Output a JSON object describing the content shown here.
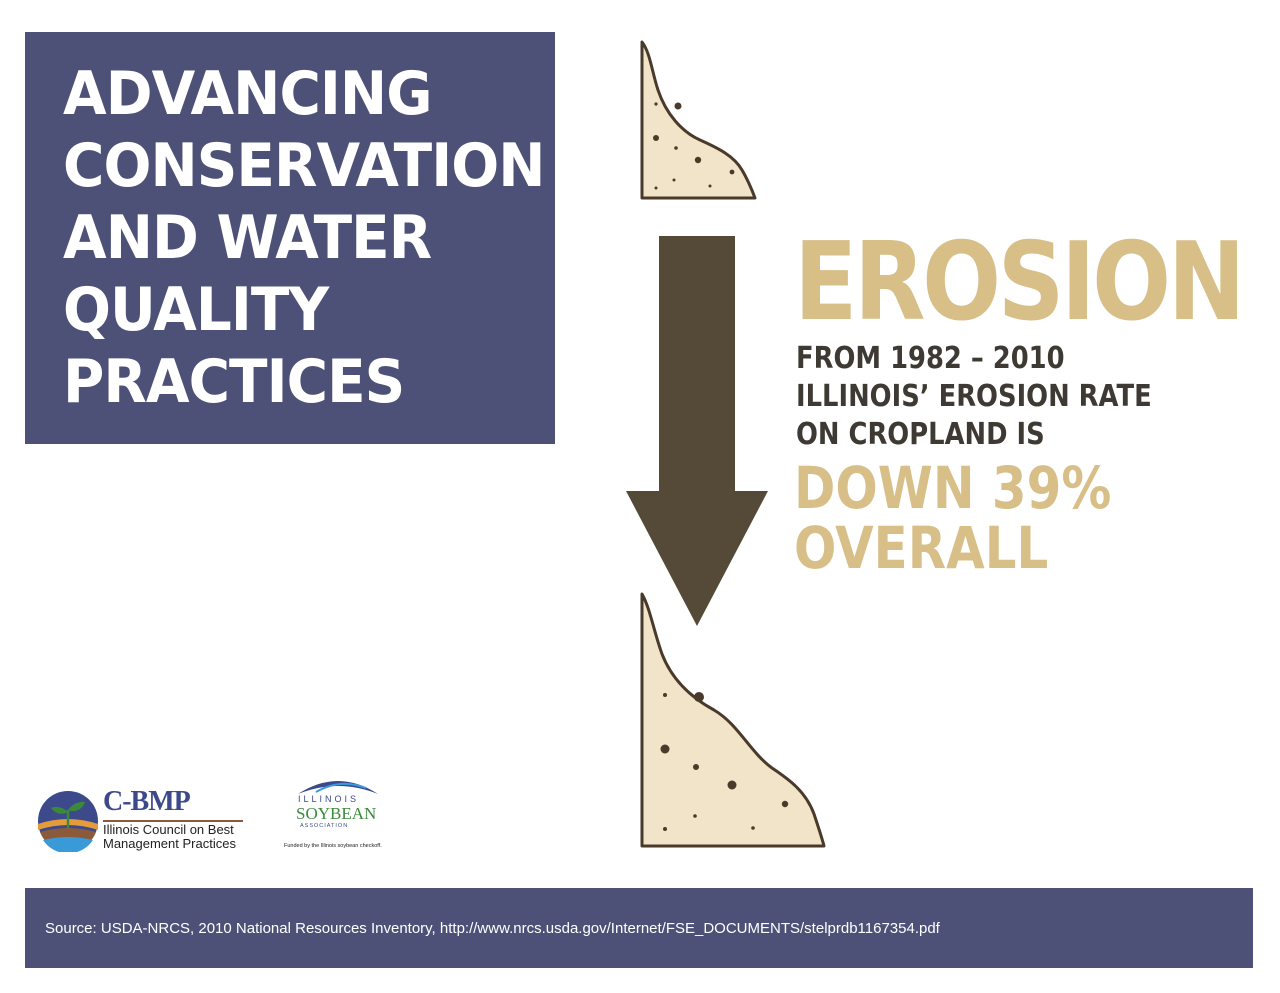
{
  "title": {
    "lines": [
      "ADVANCING",
      "CONSERVATION",
      "AND WATER",
      "QUALITY",
      "PRACTICES"
    ]
  },
  "erosion": {
    "heading": "EROSION",
    "body_lines": [
      "FROM 1982 – 2010",
      "ILLINOIS’ EROSION RATE",
      "ON CROPLAND IS"
    ],
    "highlight_lines": [
      "DOWN 39%",
      "OVERALL"
    ]
  },
  "logos": {
    "cbmp": {
      "name": "C-BMP",
      "subtitle_lines": [
        "Illinois Council on Best",
        "Management Practices"
      ]
    },
    "isa": {
      "line1": "ILLINOIS",
      "line2": "SOYBEAN",
      "line3": "ASSOCIATION",
      "funded": "Funded by the Illinois soybean checkoff."
    }
  },
  "footer": {
    "source": "Source: USDA-NRCS, 2010 National Resources Inventory, http://www.nrcs.usda.gov/Internet/FSE_DOCUMENTS/stelprdb1167354.pdf"
  },
  "colors": {
    "panel": "#4d5177",
    "accent_tan": "#d8bf88",
    "arrow": "#554a38",
    "soil_fill": "#f1e4c8",
    "soil_stroke": "#4a3a2c"
  },
  "icons": [
    "soil-slope-icon",
    "down-arrow-icon",
    "cbmp-logo-icon",
    "isa-logo-icon"
  ]
}
